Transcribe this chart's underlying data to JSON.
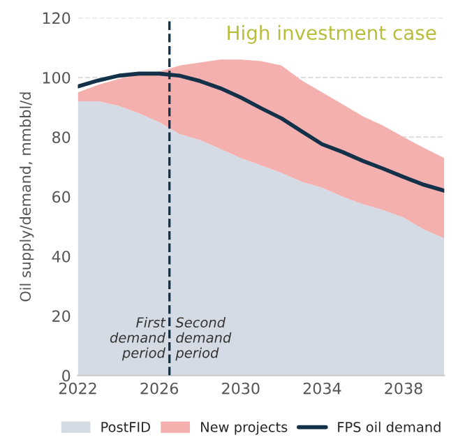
{
  "chart_data": {
    "type": "area",
    "stacked": true,
    "title": "High investment case",
    "ylabel": "Oil supply/demand, mmbbl/d",
    "x": [
      2022,
      2023,
      2024,
      2025,
      2026,
      2027,
      2028,
      2029,
      2030,
      2031,
      2032,
      2033,
      2034,
      2035,
      2036,
      2037,
      2038,
      2039,
      2040
    ],
    "series": [
      {
        "name": "PostFID",
        "color": "#d5dbe5",
        "values": [
          92,
          92,
          90.5,
          88,
          85,
          81,
          79,
          76,
          73,
          70.5,
          68,
          65,
          63,
          60,
          57.5,
          55.5,
          53,
          49,
          46
        ]
      },
      {
        "name": "New projects",
        "color": "#f4b0ae",
        "values": [
          3,
          5.5,
          9,
          13,
          17,
          23,
          26,
          30,
          33,
          35,
          36,
          34,
          32,
          31,
          29.5,
          28.3,
          27,
          27.4,
          27
        ]
      },
      {
        "name": "FPS oil demand",
        "type": "line",
        "color": "#13324a",
        "values": [
          97,
          99,
          100.6,
          101.3,
          101.3,
          100.6,
          98.8,
          96.4,
          93.3,
          89.7,
          86.3,
          81.9,
          77.6,
          75,
          72,
          69.4,
          66.6,
          64,
          62
        ]
      }
    ],
    "xlim": [
      2022,
      2040
    ],
    "ylim": [
      0,
      120
    ],
    "xticks": [
      2022,
      2026,
      2030,
      2034,
      2038
    ],
    "yticks": [
      0,
      20,
      40,
      60,
      80,
      100,
      120
    ],
    "grid": "y",
    "legend": "bottom",
    "ref_lines": [
      {
        "axis": "x",
        "value": 2026.5,
        "color": "#13324a",
        "line_style": "dashed"
      }
    ],
    "annotations": [
      {
        "text": "First\ndemand\nperiod",
        "x": 2026.3,
        "y": 5
      },
      {
        "text": "Second\ndemand\nperiod",
        "x": 2026.8,
        "y": 5
      }
    ]
  }
}
